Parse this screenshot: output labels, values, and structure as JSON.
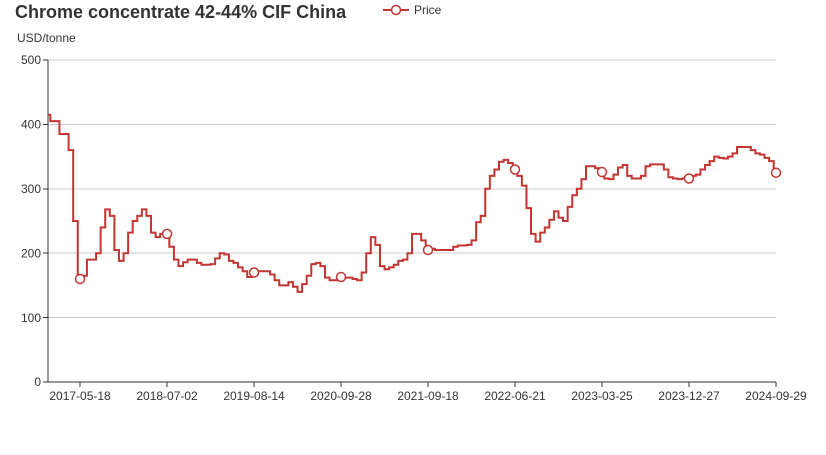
{
  "colors": {
    "series": "#c23531",
    "text": "#333333",
    "axis": "#333333",
    "grid": "#cccccc",
    "marker_fill": "#ffffff"
  },
  "chart_data": {
    "type": "line",
    "title": "Chrome concentrate 42-44% CIF China",
    "ylabel": "USD/tonne",
    "ylim": [
      0,
      500
    ],
    "y_ticks": [
      0,
      100,
      200,
      300,
      400,
      500
    ],
    "grid": "horizontal",
    "legend_position": "top",
    "x_ticks": [
      {
        "index": 7,
        "label": "2017-05-18"
      },
      {
        "index": 26,
        "label": "2018-07-02"
      },
      {
        "index": 45,
        "label": "2019-08-14"
      },
      {
        "index": 64,
        "label": "2020-09-28"
      },
      {
        "index": 83,
        "label": "2021-09-18"
      },
      {
        "index": 102,
        "label": "2022-06-21"
      },
      {
        "index": 121,
        "label": "2023-03-25"
      },
      {
        "index": 140,
        "label": "2023-12-27"
      },
      {
        "index": 159,
        "label": "2024-09-29"
      }
    ],
    "series": [
      {
        "name": "Price",
        "values": [
          415,
          405,
          405,
          385,
          385,
          360,
          250,
          160,
          165,
          190,
          190,
          200,
          240,
          268,
          258,
          205,
          188,
          200,
          232,
          250,
          258,
          268,
          258,
          232,
          225,
          230,
          230,
          210,
          190,
          180,
          186,
          190,
          190,
          185,
          182,
          182,
          183,
          192,
          200,
          198,
          188,
          185,
          178,
          172,
          163,
          170,
          172,
          172,
          172,
          167,
          158,
          150,
          150,
          155,
          148,
          140,
          152,
          165,
          183,
          185,
          180,
          162,
          158,
          158,
          163,
          162,
          162,
          160,
          158,
          170,
          200,
          225,
          213,
          180,
          175,
          178,
          182,
          188,
          190,
          200,
          230,
          230,
          220,
          205,
          207,
          205,
          205,
          205,
          205,
          210,
          212,
          212,
          213,
          220,
          248,
          258,
          300,
          320,
          330,
          342,
          345,
          340,
          330,
          320,
          305,
          270,
          230,
          218,
          232,
          240,
          252,
          265,
          255,
          250,
          272,
          290,
          300,
          315,
          335,
          335,
          332,
          326,
          316,
          315,
          322,
          333,
          337,
          320,
          316,
          316,
          320,
          335,
          338,
          338,
          338,
          330,
          318,
          316,
          315,
          316,
          316,
          320,
          322,
          330,
          337,
          343,
          350,
          348,
          347,
          350,
          355,
          365,
          365,
          365,
          360,
          355,
          353,
          348,
          343,
          325
        ]
      }
    ]
  }
}
